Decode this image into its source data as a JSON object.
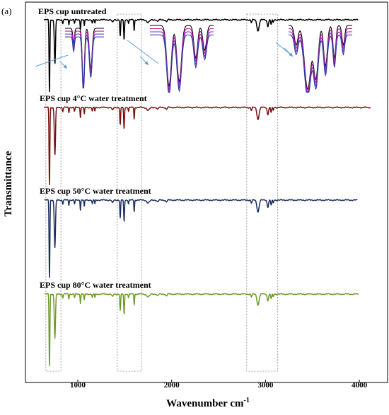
{
  "panel_label": "(a)",
  "chart_data": {
    "type": "line",
    "title": "",
    "xlabel": "Wavenumber  cm",
    "xlabel_superscript": "-1",
    "ylabel": "Transmittance",
    "x_ticks": [
      1000,
      2000,
      3000,
      4000
    ],
    "xlim": [
      550,
      4150
    ],
    "y_ticks_shown": false,
    "grid": false,
    "highlight_regions": [
      [
        660,
        820
      ],
      [
        1420,
        1680
      ],
      [
        2800,
        3130
      ]
    ],
    "series": [
      {
        "name": "EPS cup untreated",
        "color": "#000000"
      },
      {
        "name": "EPS cup 4°C water treatment",
        "color": "#7a1010"
      },
      {
        "name": "EPS cup 50°C water treatment",
        "color": "#1c2f5e"
      },
      {
        "name": "EPS cup 80°C water treatment",
        "color": "#6f9a2a"
      }
    ],
    "inset_colors": [
      "#000000",
      "#c81e9c",
      "#7b2fbe",
      "#2a3a9e"
    ]
  }
}
